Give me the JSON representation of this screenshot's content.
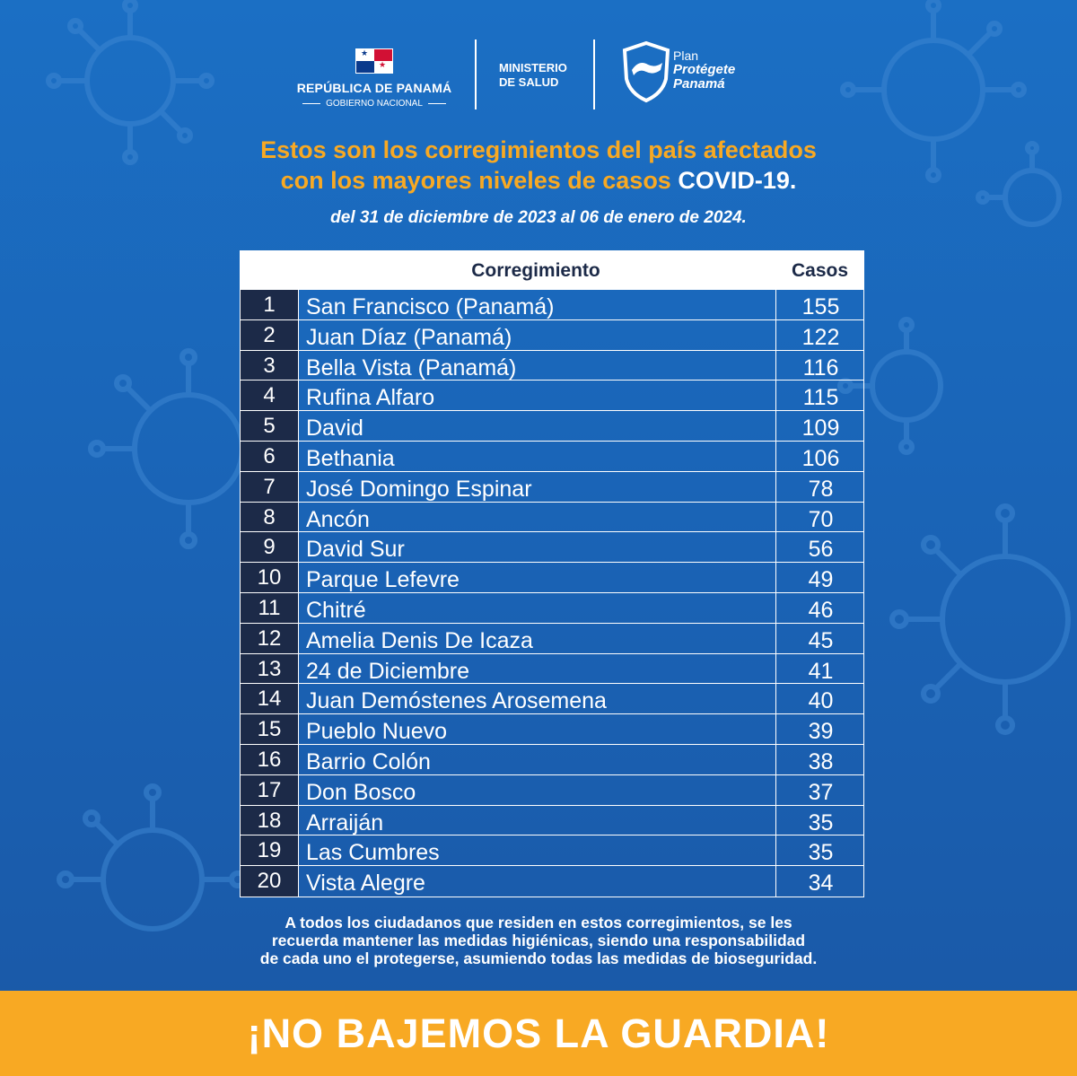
{
  "header": {
    "republic": "REPÚBLICA DE PANAMÁ",
    "government": "GOBIERNO NACIONAL",
    "ministry_line1": "MINISTERIO",
    "ministry_line2": "DE SALUD",
    "plan_line1": "Plan",
    "plan_line2": "Protégete",
    "plan_line3": "Panamá"
  },
  "headline": {
    "line1": "Estos son los corregimientos del país afectados",
    "line2_part1": "con los mayores niveles de casos ",
    "line2_highlight": "COVID-19."
  },
  "date_range": "del 31 de diciembre de 2023 al 06 de enero de 2024.",
  "table": {
    "col_place": "Corregimiento",
    "col_cases": "Casos",
    "rows": [
      {
        "rank": "1",
        "place": "San Francisco (Panamá)",
        "cases": "155"
      },
      {
        "rank": "2",
        "place": "Juan Díaz (Panamá)",
        "cases": "122"
      },
      {
        "rank": "3",
        "place": "Bella Vista (Panamá)",
        "cases": "116"
      },
      {
        "rank": "4",
        "place": "Rufina Alfaro",
        "cases": "115"
      },
      {
        "rank": "5",
        "place": "David",
        "cases": "109"
      },
      {
        "rank": "6",
        "place": "Bethania",
        "cases": "106"
      },
      {
        "rank": "7",
        "place": "José Domingo Espinar",
        "cases": "78"
      },
      {
        "rank": "8",
        "place": "Ancón",
        "cases": "70"
      },
      {
        "rank": "9",
        "place": "David Sur",
        "cases": "56"
      },
      {
        "rank": "10",
        "place": "Parque Lefevre",
        "cases": "49"
      },
      {
        "rank": "11",
        "place": "Chitré",
        "cases": "46"
      },
      {
        "rank": "12",
        "place": "Amelia Denis De Icaza",
        "cases": "45"
      },
      {
        "rank": "13",
        "place": "24 de Diciembre",
        "cases": "41"
      },
      {
        "rank": "14",
        "place": "Juan Demóstenes Arosemena",
        "cases": "40"
      },
      {
        "rank": "15",
        "place": "Pueblo Nuevo",
        "cases": "39"
      },
      {
        "rank": "16",
        "place": "Barrio Colón",
        "cases": "38"
      },
      {
        "rank": "17",
        "place": "Don Bosco",
        "cases": "37"
      },
      {
        "rank": "18",
        "place": "Arraiján",
        "cases": "35"
      },
      {
        "rank": "19",
        "place": "Las Cumbres",
        "cases": "35"
      },
      {
        "rank": "20",
        "place": "Vista Alegre",
        "cases": "34"
      }
    ]
  },
  "footer": {
    "line1": "A todos los ciudadanos que residen en estos corregimientos, se les",
    "line2": "recuerda mantener las medidas higiénicas, siendo una responsabilidad",
    "line3": "de cada uno el protegerse, asumiendo todas  las medidas de bioseguridad."
  },
  "banner": "¡NO BAJEMOS LA GUARDIA!",
  "colors": {
    "background": "#1b6fc4",
    "accent": "#f8a923",
    "rank_cell": "#1c2a48"
  }
}
